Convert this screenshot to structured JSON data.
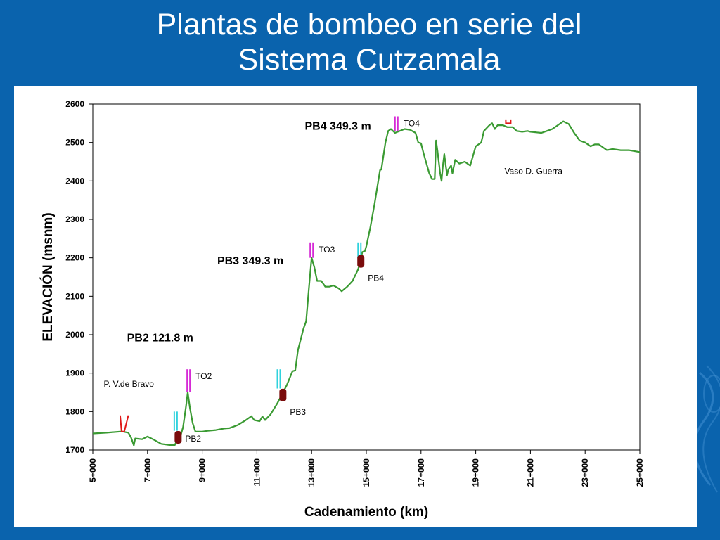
{
  "slide": {
    "title_line1": "Plantas de bombeo en serie del",
    "title_line2": "Sistema Cutzamala"
  },
  "colors": {
    "background": "#0a63ad",
    "profile_line": "#3a9a32",
    "pump_station": "#7a0c0c",
    "tower_magenta": "#d62ad6",
    "tower_cyan": "#2fd2dd",
    "marker_red": "#e01818"
  },
  "chart_data": {
    "type": "line",
    "xlabel": "Cadenamiento (km)",
    "ylabel": "ELEVACIÓN (msnm)",
    "xlim": [
      5,
      25
    ],
    "ylim": [
      1700,
      2600
    ],
    "grid": false,
    "x_ticks": [
      5,
      7,
      9,
      11,
      13,
      15,
      17,
      19,
      21,
      23,
      25
    ],
    "x_tick_labels": [
      "5+000",
      "7+000",
      "9+000",
      "11+000",
      "13+000",
      "15+000",
      "17+000",
      "19+000",
      "21+000",
      "23+000",
      "25+000"
    ],
    "y_ticks": [
      1700,
      1800,
      1900,
      2000,
      2100,
      2200,
      2300,
      2400,
      2500,
      2600
    ],
    "y_tick_labels": [
      "1700",
      "1800",
      "1900",
      "2000",
      "2100",
      "2200",
      "2300",
      "2400",
      "2500",
      "2600"
    ],
    "series": [
      {
        "points": [
          [
            5.0,
            1743
          ],
          [
            5.5,
            1745
          ],
          [
            6.0,
            1748
          ],
          [
            6.1,
            1748
          ],
          [
            6.3,
            1745
          ],
          [
            6.4,
            1732
          ],
          [
            6.5,
            1712
          ],
          [
            6.55,
            1730
          ],
          [
            6.8,
            1728
          ],
          [
            7.0,
            1735
          ],
          [
            7.2,
            1728
          ],
          [
            7.5,
            1716
          ],
          [
            7.8,
            1713
          ],
          [
            8.0,
            1713
          ],
          [
            8.1,
            1730
          ],
          [
            8.2,
            1735
          ],
          [
            8.3,
            1760
          ],
          [
            8.4,
            1810
          ],
          [
            8.47,
            1850
          ],
          [
            8.55,
            1810
          ],
          [
            8.65,
            1770
          ],
          [
            8.75,
            1748
          ],
          [
            9.0,
            1748
          ],
          [
            9.2,
            1750
          ],
          [
            9.5,
            1752
          ],
          [
            9.8,
            1756
          ],
          [
            10.0,
            1757
          ],
          [
            10.3,
            1765
          ],
          [
            10.6,
            1778
          ],
          [
            10.8,
            1788
          ],
          [
            10.9,
            1778
          ],
          [
            11.1,
            1775
          ],
          [
            11.2,
            1787
          ],
          [
            11.3,
            1778
          ],
          [
            11.5,
            1793
          ],
          [
            11.75,
            1822
          ],
          [
            11.9,
            1842
          ],
          [
            12.1,
            1870
          ],
          [
            12.3,
            1905
          ],
          [
            12.4,
            1907
          ],
          [
            12.5,
            1960
          ],
          [
            12.7,
            2015
          ],
          [
            12.8,
            2035
          ],
          [
            12.9,
            2120
          ],
          [
            13.0,
            2200
          ],
          [
            13.1,
            2175
          ],
          [
            13.2,
            2140
          ],
          [
            13.35,
            2140
          ],
          [
            13.45,
            2130
          ],
          [
            13.5,
            2125
          ],
          [
            13.65,
            2125
          ],
          [
            13.8,
            2128
          ],
          [
            14.0,
            2120
          ],
          [
            14.1,
            2113
          ],
          [
            14.3,
            2125
          ],
          [
            14.5,
            2140
          ],
          [
            14.7,
            2170
          ],
          [
            14.8,
            2195
          ],
          [
            14.85,
            2215
          ],
          [
            14.95,
            2218
          ],
          [
            15.0,
            2230
          ],
          [
            15.15,
            2280
          ],
          [
            15.3,
            2340
          ],
          [
            15.5,
            2428
          ],
          [
            15.55,
            2430
          ],
          [
            15.7,
            2500
          ],
          [
            15.8,
            2530
          ],
          [
            15.9,
            2535
          ],
          [
            16.05,
            2525
          ],
          [
            16.4,
            2535
          ],
          [
            16.6,
            2533
          ],
          [
            16.8,
            2525
          ],
          [
            16.9,
            2500
          ],
          [
            17.0,
            2498
          ],
          [
            17.1,
            2470
          ],
          [
            17.3,
            2420
          ],
          [
            17.4,
            2405
          ],
          [
            17.5,
            2405
          ],
          [
            17.55,
            2505
          ],
          [
            17.6,
            2480
          ],
          [
            17.7,
            2420
          ],
          [
            17.75,
            2400
          ],
          [
            17.8,
            2440
          ],
          [
            17.85,
            2470
          ],
          [
            17.95,
            2415
          ],
          [
            18.0,
            2430
          ],
          [
            18.1,
            2440
          ],
          [
            18.15,
            2420
          ],
          [
            18.25,
            2455
          ],
          [
            18.4,
            2445
          ],
          [
            18.6,
            2450
          ],
          [
            18.8,
            2440
          ],
          [
            19.0,
            2490
          ],
          [
            19.2,
            2500
          ],
          [
            19.3,
            2530
          ],
          [
            19.5,
            2545
          ],
          [
            19.6,
            2550
          ],
          [
            19.7,
            2535
          ],
          [
            19.8,
            2545
          ],
          [
            19.9,
            2545
          ],
          [
            20.0,
            2545
          ],
          [
            20.15,
            2540
          ],
          [
            20.35,
            2540
          ],
          [
            20.5,
            2530
          ],
          [
            20.7,
            2528
          ],
          [
            20.9,
            2530
          ],
          [
            21.0,
            2528
          ],
          [
            21.4,
            2525
          ],
          [
            21.6,
            2530
          ],
          [
            21.8,
            2535
          ],
          [
            22.0,
            2545
          ],
          [
            22.2,
            2555
          ],
          [
            22.4,
            2548
          ],
          [
            22.6,
            2525
          ],
          [
            22.8,
            2505
          ],
          [
            23.0,
            2500
          ],
          [
            23.2,
            2490
          ],
          [
            23.35,
            2495
          ],
          [
            23.5,
            2495
          ],
          [
            23.7,
            2485
          ],
          [
            23.8,
            2480
          ],
          [
            24.0,
            2483
          ],
          [
            24.3,
            2480
          ],
          [
            24.6,
            2480
          ],
          [
            25.0,
            2475
          ]
        ]
      }
    ],
    "pump_stations": [
      {
        "label": "PB2",
        "x": 8.12,
        "y": 1733
      },
      {
        "label": "PB3",
        "x": 11.95,
        "y": 1843
      },
      {
        "label": "PB4",
        "x": 14.8,
        "y": 2191
      }
    ],
    "towers": [
      {
        "label": "TO2",
        "x": 8.5,
        "y_bottom": 1850,
        "y_top": 1910,
        "color": "magenta"
      },
      {
        "label": "TO3",
        "x": 13.0,
        "y_bottom": 2200,
        "y_top": 2240,
        "color": "magenta"
      },
      {
        "label": "TO4",
        "x": 16.1,
        "y_bottom": 2530,
        "y_top": 2568,
        "color": "magenta"
      },
      {
        "label": "",
        "x": 8.03,
        "y_bottom": 1750,
        "y_top": 1800,
        "color": "cyan"
      },
      {
        "label": "",
        "x": 11.8,
        "y_bottom": 1860,
        "y_top": 1910,
        "color": "cyan"
      },
      {
        "label": "",
        "x": 14.75,
        "y_bottom": 2200,
        "y_top": 2240,
        "color": "cyan"
      }
    ],
    "annotations": [
      {
        "text": "PB2 121.8 m",
        "x": 6.25,
        "y": 1983,
        "bold": true
      },
      {
        "text": "PB3 349.3 m",
        "x": 9.55,
        "y": 2183,
        "bold": true
      },
      {
        "text": "PB4 349.3 m",
        "x": 12.75,
        "y": 2533,
        "bold": true
      },
      {
        "text": "P. V.de Bravo",
        "x": 5.4,
        "y": 1865,
        "bold": false
      },
      {
        "text": "Vaso D. Guerra",
        "x": 20.05,
        "y": 2418,
        "bold": false
      }
    ]
  }
}
